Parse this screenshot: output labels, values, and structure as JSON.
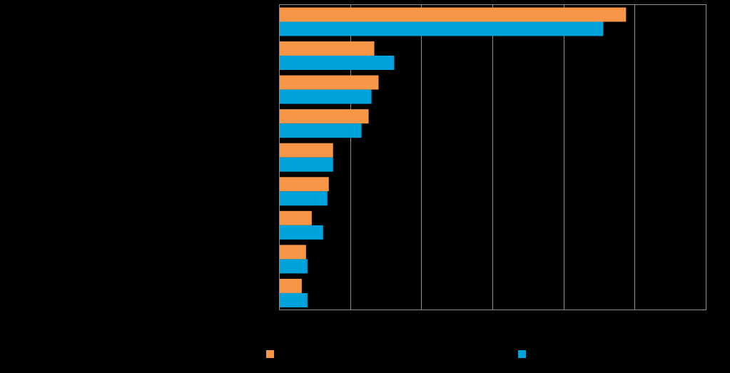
{
  "chart_data": {
    "type": "bar",
    "orientation": "horizontal",
    "title": "",
    "xlabel": "",
    "ylabel": "",
    "xlim": [
      0,
      30
    ],
    "x_gridlines": [
      5,
      10,
      15,
      20,
      25,
      30
    ],
    "grid": true,
    "legend_position": "bottom",
    "categories": [
      "",
      "",
      "",
      "",
      "",
      "",
      "",
      "",
      ""
    ],
    "series": [
      {
        "name": "",
        "color": "#F79646",
        "values": [
          24.4,
          6.7,
          7.0,
          6.3,
          3.8,
          3.5,
          2.3,
          1.9,
          1.6
        ]
      },
      {
        "name": "",
        "color": "#00A2DB",
        "values": [
          22.8,
          8.1,
          6.5,
          5.8,
          3.8,
          3.4,
          3.1,
          2.0,
          2.0
        ]
      }
    ]
  },
  "colors": {
    "background": "#000000",
    "gridline": "#8C8C8C",
    "axis": "#8C8C8C"
  }
}
